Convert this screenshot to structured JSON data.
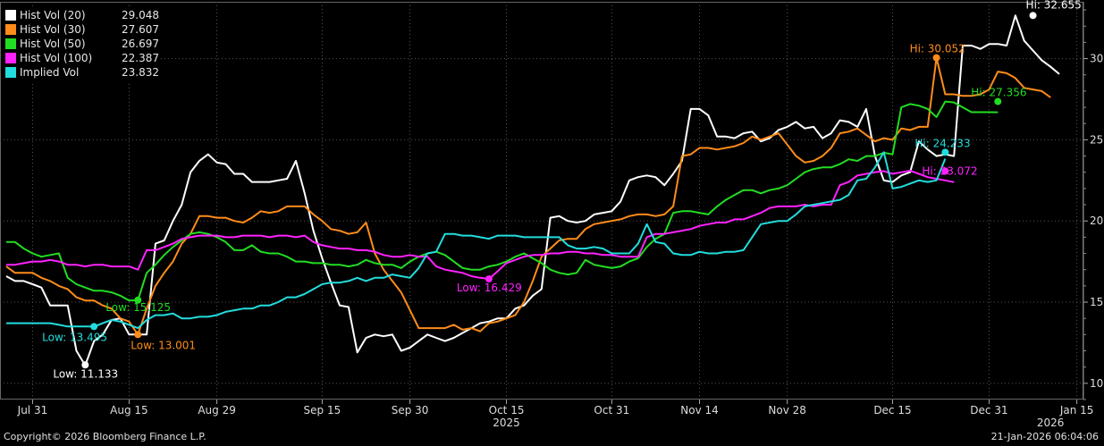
{
  "footer": {
    "copyright": "Copyright© 2026 Bloomberg Finance L.P.",
    "timestamp": "21-Jan-2026 06:04:06"
  },
  "legend": [
    {
      "name": "Hist Vol (20)",
      "value": "29.048",
      "color": "#ffffff"
    },
    {
      "name": "Hist Vol (30)",
      "value": "27.607",
      "color": "#ff8c1a"
    },
    {
      "name": "Hist Vol (50)",
      "value": "26.697",
      "color": "#22dd22"
    },
    {
      "name": "Hist Vol (100)",
      "value": "22.387",
      "color": "#ff22ff"
    },
    {
      "name": "Implied Vol",
      "value": "23.832",
      "color": "#22dddd"
    }
  ],
  "chart_data": {
    "type": "line",
    "ylim": [
      9,
      33.5
    ],
    "yticks": [
      10,
      15,
      20,
      25,
      30
    ],
    "x_range": [
      0,
      120
    ],
    "xticks": [
      {
        "label": "Jul 31",
        "x": 3
      },
      {
        "label": "Aug 15",
        "x": 14
      },
      {
        "label": "Aug 29",
        "x": 24
      },
      {
        "label": "Sep 15",
        "x": 36
      },
      {
        "label": "Sep 30",
        "x": 46
      },
      {
        "label": "Oct 15",
        "x": 57
      },
      {
        "label": "Oct 31",
        "x": 69
      },
      {
        "label": "Nov 14",
        "x": 79
      },
      {
        "label": "Nov 28",
        "x": 89
      },
      {
        "label": "Dec 15",
        "x": 101
      },
      {
        "label": "Dec 31",
        "x": 112
      },
      {
        "label": "Jan 15",
        "x": 122
      }
    ],
    "year_labels": [
      {
        "label": "2025",
        "x": 57
      },
      {
        "label": "2026",
        "x": 119
      }
    ],
    "series": [
      {
        "name": "Hist Vol (20)",
        "color": "#ffffff",
        "values": [
          16.6,
          16.3,
          16.3,
          16.1,
          15.9,
          14.8,
          14.8,
          14.8,
          12.0,
          11.1,
          12.6,
          13.0,
          13.9,
          14.0,
          13.0,
          13.0,
          13.0,
          18.6,
          18.8,
          20.0,
          21.0,
          23.0,
          23.7,
          24.1,
          23.6,
          23.5,
          22.9,
          22.9,
          22.4,
          22.4,
          22.4,
          22.5,
          22.6,
          23.7,
          21.7,
          19.4,
          17.7,
          16.2,
          14.8,
          14.7,
          11.9,
          12.8,
          13.0,
          12.9,
          13.0,
          12.0,
          12.2,
          12.6,
          13.0,
          12.8,
          12.6,
          12.8,
          13.1,
          13.4,
          13.7,
          13.8,
          14.0,
          14.0,
          14.6,
          14.8,
          15.4,
          15.8,
          20.2,
          20.3,
          20.0,
          19.9,
          20.0,
          20.4,
          20.5,
          20.6,
          21.2,
          22.5,
          22.7,
          22.8,
          22.7,
          22.2,
          22.9,
          23.7,
          26.9,
          26.9,
          26.5,
          25.2,
          25.2,
          25.1,
          25.4,
          25.5,
          24.9,
          25.1,
          25.6,
          25.8,
          26.1,
          25.7,
          25.8,
          25.1,
          25.4,
          26.2,
          26.1,
          25.8,
          26.9,
          24.0,
          22.5,
          22.4,
          22.8,
          23.0,
          24.9,
          24.4,
          24.0,
          24.1,
          24.0,
          30.8,
          30.8,
          30.6,
          30.9,
          30.9,
          30.8,
          32.655,
          31.1,
          30.5,
          29.9,
          29.5,
          29.048
        ]
      },
      {
        "name": "Hist Vol (30)",
        "color": "#ff8c1a",
        "values": [
          17.2,
          16.8,
          16.8,
          16.8,
          16.5,
          16.3,
          16.0,
          15.8,
          15.3,
          15.1,
          15.1,
          14.8,
          14.6,
          14.0,
          13.8,
          13.001,
          14.6,
          16.0,
          16.8,
          17.5,
          18.6,
          19.2,
          20.3,
          20.3,
          20.2,
          20.2,
          20.0,
          19.9,
          20.2,
          20.6,
          20.5,
          20.6,
          20.9,
          20.9,
          20.9,
          20.4,
          20.0,
          19.5,
          19.4,
          19.2,
          19.3,
          19.9,
          18.0,
          17.0,
          16.3,
          15.6,
          14.5,
          13.4,
          13.4,
          13.4,
          13.4,
          13.6,
          13.3,
          13.4,
          13.2,
          13.7,
          13.8,
          14.0,
          14.2,
          15.0,
          16.3,
          17.8,
          18.3,
          18.8,
          18.9,
          18.9,
          19.5,
          19.8,
          19.9,
          20.0,
          20.1,
          20.3,
          20.4,
          20.4,
          20.3,
          20.4,
          20.9,
          24.0,
          24.1,
          24.5,
          24.5,
          24.4,
          24.5,
          24.6,
          24.8,
          25.2,
          25.0,
          25.2,
          25.4,
          24.7,
          24.0,
          23.6,
          23.7,
          24.0,
          24.5,
          25.4,
          25.5,
          25.7,
          25.3,
          24.9,
          25.1,
          25.0,
          25.7,
          25.6,
          25.8,
          25.8,
          30.052,
          27.8,
          27.8,
          27.7,
          27.7,
          27.8,
          28.1,
          29.2,
          29.1,
          28.8,
          28.2,
          28.1,
          28.0,
          27.607
        ]
      },
      {
        "name": "Hist Vol (50)",
        "color": "#22dd22",
        "values": [
          18.7,
          18.7,
          18.3,
          18.0,
          17.8,
          17.9,
          18.0,
          16.5,
          16.1,
          15.9,
          15.7,
          15.7,
          15.6,
          15.4,
          15.1,
          15.125,
          16.8,
          17.3,
          17.9,
          18.4,
          18.8,
          19.2,
          19.3,
          19.2,
          19.0,
          18.7,
          18.2,
          18.2,
          18.5,
          18.1,
          18.0,
          18.0,
          17.8,
          17.5,
          17.5,
          17.4,
          17.4,
          17.3,
          17.3,
          17.2,
          17.3,
          17.6,
          17.4,
          17.3,
          17.3,
          17.1,
          17.5,
          17.8,
          18.0,
          18.1,
          17.9,
          17.5,
          17.1,
          17.0,
          17.0,
          17.2,
          17.3,
          17.5,
          17.8,
          18.0,
          17.7,
          17.4,
          17.0,
          16.8,
          16.7,
          16.8,
          17.6,
          17.3,
          17.2,
          17.1,
          17.2,
          17.5,
          17.7,
          18.4,
          18.9,
          19.2,
          20.5,
          20.6,
          20.6,
          20.5,
          20.4,
          20.9,
          21.3,
          21.6,
          21.9,
          21.9,
          21.7,
          21.9,
          22.0,
          22.2,
          22.6,
          23.0,
          23.2,
          23.3,
          23.3,
          23.5,
          23.8,
          23.7,
          24.0,
          24.0,
          24.2,
          24.1,
          27.0,
          27.2,
          27.1,
          26.9,
          26.4,
          27.356,
          27.3,
          27.0,
          26.7,
          26.7,
          26.7,
          26.697
        ]
      },
      {
        "name": "Hist Vol (100)",
        "color": "#ff22ff",
        "values": [
          17.3,
          17.3,
          17.4,
          17.5,
          17.5,
          17.6,
          17.5,
          17.3,
          17.3,
          17.2,
          17.3,
          17.3,
          17.2,
          17.2,
          17.2,
          17.0,
          18.2,
          18.2,
          18.4,
          18.6,
          18.9,
          19.0,
          19.1,
          19.1,
          19.1,
          19.0,
          19.0,
          19.1,
          19.1,
          19.1,
          19.0,
          19.1,
          19.1,
          19.0,
          19.1,
          18.7,
          18.5,
          18.4,
          18.3,
          18.3,
          18.2,
          18.2,
          18.1,
          17.9,
          17.8,
          17.8,
          17.9,
          17.8,
          17.8,
          17.2,
          17.0,
          16.9,
          16.8,
          16.6,
          16.5,
          16.429,
          16.9,
          17.4,
          17.6,
          17.8,
          17.9,
          17.9,
          18.0,
          18.0,
          18.1,
          18.1,
          18.0,
          18.0,
          17.9,
          17.9,
          17.8,
          17.8,
          17.8,
          19.0,
          19.2,
          19.2,
          19.3,
          19.4,
          19.5,
          19.7,
          19.8,
          19.9,
          19.9,
          20.1,
          20.1,
          20.3,
          20.5,
          20.8,
          20.9,
          20.9,
          20.9,
          21.0,
          20.9,
          21.0,
          21.0,
          22.2,
          22.4,
          22.8,
          22.9,
          23.0,
          23.072,
          22.9,
          23.0,
          23.1,
          22.9,
          22.7,
          22.6,
          22.5,
          22.387
        ]
      },
      {
        "name": "Implied Vol",
        "color": "#22dddd",
        "values": [
          13.7,
          13.7,
          13.7,
          13.7,
          13.7,
          13.7,
          13.6,
          13.5,
          13.5,
          13.5,
          13.495,
          13.7,
          13.9,
          13.8,
          13.6,
          13.4,
          13.9,
          14.2,
          14.2,
          14.3,
          14.0,
          14.0,
          14.1,
          14.1,
          14.2,
          14.4,
          14.5,
          14.6,
          14.6,
          14.8,
          14.8,
          15.0,
          15.3,
          15.3,
          15.5,
          15.8,
          16.1,
          16.2,
          16.2,
          16.3,
          16.5,
          16.3,
          16.5,
          16.5,
          16.7,
          16.6,
          16.5,
          17.1,
          18.0,
          18.1,
          19.2,
          19.2,
          19.1,
          19.1,
          19.0,
          18.9,
          19.1,
          19.1,
          19.1,
          19.0,
          19.0,
          19.0,
          19.0,
          19.0,
          18.5,
          18.3,
          18.3,
          18.4,
          18.3,
          18.0,
          18.0,
          18.0,
          18.6,
          19.8,
          18.7,
          18.6,
          18.0,
          17.9,
          17.9,
          18.1,
          18.0,
          18.0,
          18.1,
          18.1,
          18.2,
          19.0,
          19.8,
          19.9,
          20.0,
          20.0,
          20.4,
          20.9,
          21.0,
          21.1,
          21.2,
          21.3,
          21.6,
          22.5,
          22.6,
          23.3,
          24.233,
          22.0,
          22.1,
          22.3,
          22.5,
          22.4,
          22.5,
          23.832
        ]
      }
    ],
    "annotations": [
      {
        "series": 0,
        "kind": "low",
        "text": "Low: 11.133",
        "x": 9,
        "y": 11.133
      },
      {
        "series": 0,
        "kind": "high",
        "text": "Hi: 32.655",
        "x": 117,
        "y": 32.655
      },
      {
        "series": 1,
        "kind": "low",
        "text": "Low: 13.001",
        "x": 15,
        "y": 13.001
      },
      {
        "series": 1,
        "kind": "high",
        "text": "Hi: 30.052",
        "x": 106,
        "y": 30.052
      },
      {
        "series": 2,
        "kind": "low",
        "text": "Low: 15.125",
        "x": 15,
        "y": 15.125
      },
      {
        "series": 2,
        "kind": "high",
        "text": "Hi: 27.356",
        "x": 113,
        "y": 27.356
      },
      {
        "series": 3,
        "kind": "low",
        "text": "Low: 16.429",
        "x": 55,
        "y": 16.429
      },
      {
        "series": 3,
        "kind": "high",
        "text": "Hi: 23.072",
        "x": 107,
        "y": 23.072
      },
      {
        "series": 4,
        "kind": "low",
        "text": "Low: 13.495",
        "x": 10,
        "y": 13.495
      },
      {
        "series": 4,
        "kind": "high",
        "text": "Hi: 24.233",
        "x": 107,
        "y": 24.233
      }
    ]
  }
}
